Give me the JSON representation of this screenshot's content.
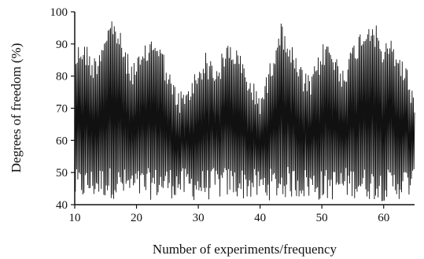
{
  "chart_data": {
    "type": "line",
    "title": "",
    "xlabel": "Number of experiments/frequency",
    "ylabel": "Degrees of freedom (%)",
    "xlim": [
      10,
      65
    ],
    "ylim": [
      40,
      100
    ],
    "x_ticks": [
      10,
      20,
      30,
      40,
      50,
      60
    ],
    "y_ticks": [
      40,
      50,
      60,
      70,
      80,
      90,
      100
    ],
    "grid": false,
    "legend": "none",
    "line_color": "#111111",
    "series": [
      {
        "samples_per_unit": 10,
        "upper_envelope": {
          "x": [
            10,
            11,
            12,
            13,
            14,
            15,
            16,
            17,
            18,
            19,
            20,
            21,
            22,
            23,
            24,
            25,
            26,
            27,
            28,
            29,
            30,
            31,
            32,
            33,
            34,
            35,
            36,
            37,
            38,
            39,
            40,
            41,
            42,
            43,
            44,
            45,
            46,
            47,
            48,
            49,
            50,
            51,
            52,
            53,
            54,
            55,
            56,
            57,
            58,
            59,
            60,
            61,
            62,
            63,
            64,
            65
          ],
          "y": [
            88,
            92,
            90,
            86,
            90,
            96,
            99,
            96,
            90,
            85,
            86,
            88,
            92,
            94,
            90,
            84,
            78,
            76,
            76,
            80,
            84,
            88,
            86,
            84,
            88,
            92,
            90,
            86,
            82,
            78,
            76,
            80,
            88,
            97,
            96,
            90,
            86,
            82,
            80,
            84,
            90,
            92,
            88,
            84,
            86,
            90,
            94,
            97,
            99,
            95,
            90,
            92,
            90,
            86,
            82,
            74
          ]
        },
        "lower_envelope": {
          "x": [
            10,
            15,
            20,
            25,
            30,
            35,
            40,
            45,
            50,
            55,
            60,
            65
          ],
          "y": [
            41,
            42,
            41,
            42,
            41,
            42,
            41,
            42,
            41,
            42,
            41,
            42
          ]
        }
      }
    ]
  }
}
